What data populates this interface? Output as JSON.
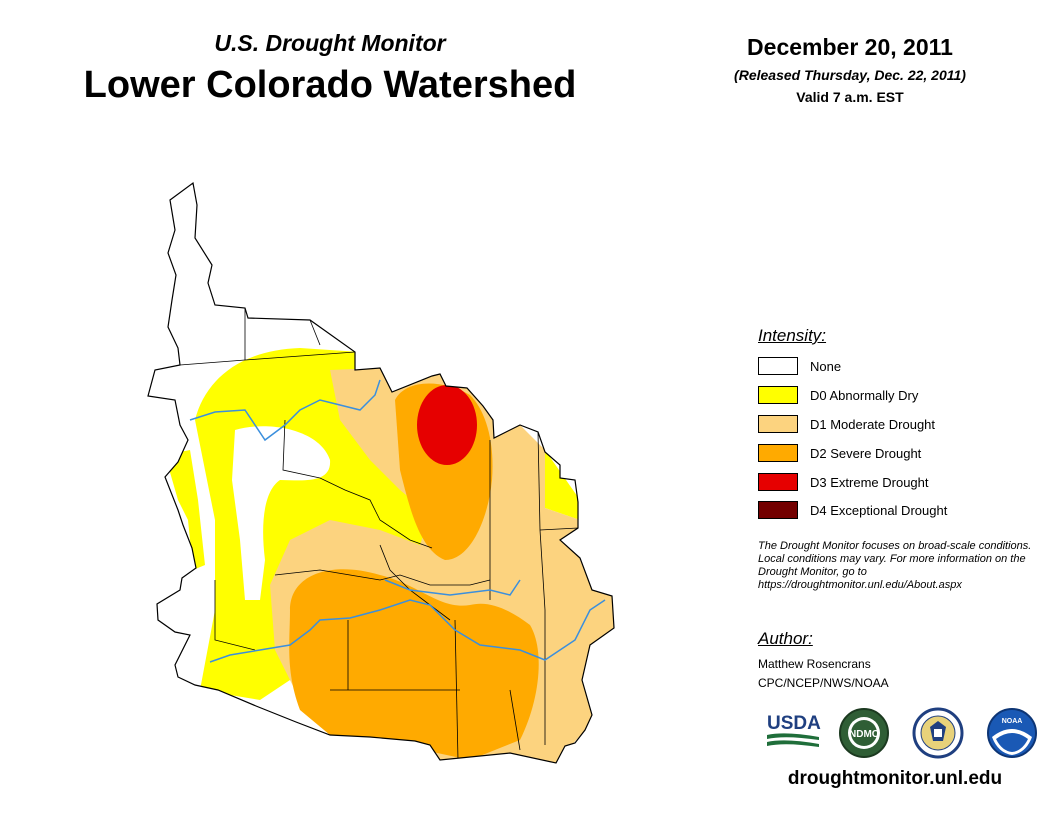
{
  "header": {
    "subtitle": "U.S. Drought Monitor",
    "title": "Lower Colorado Watershed",
    "date": "December 20, 2011",
    "released": "(Released Thursday, Dec. 22, 2011)",
    "valid": "Valid 7 a.m. EST"
  },
  "legend": {
    "title": "Intensity:",
    "items": [
      {
        "label": "None",
        "color": "#ffffff"
      },
      {
        "label": "D0 Abnormally Dry",
        "color": "#ffff00"
      },
      {
        "label": "D1 Moderate Drought",
        "color": "#fcd37f"
      },
      {
        "label": "D2 Severe Drought",
        "color": "#ffaa00"
      },
      {
        "label": "D3 Extreme Drought",
        "color": "#e60000"
      },
      {
        "label": "D4 Exceptional Drought",
        "color": "#730000"
      }
    ]
  },
  "note": "The Drought Monitor focuses on broad-scale conditions. Local conditions may vary. For more information on the Drought Monitor, go to https://droughtmonitor.unl.edu/About.aspx",
  "author": {
    "title": "Author:",
    "name": "Matthew Rosencrans",
    "org": "CPC/NCEP/NWS/NOAA"
  },
  "logos": {
    "usda": "USDA",
    "ndmc": "NDMC",
    "noaa": "NOAA"
  },
  "footer_url": "droughtmonitor.unl.edu",
  "colors": {
    "river": "#3b8fdd",
    "boundary": "#000000"
  }
}
